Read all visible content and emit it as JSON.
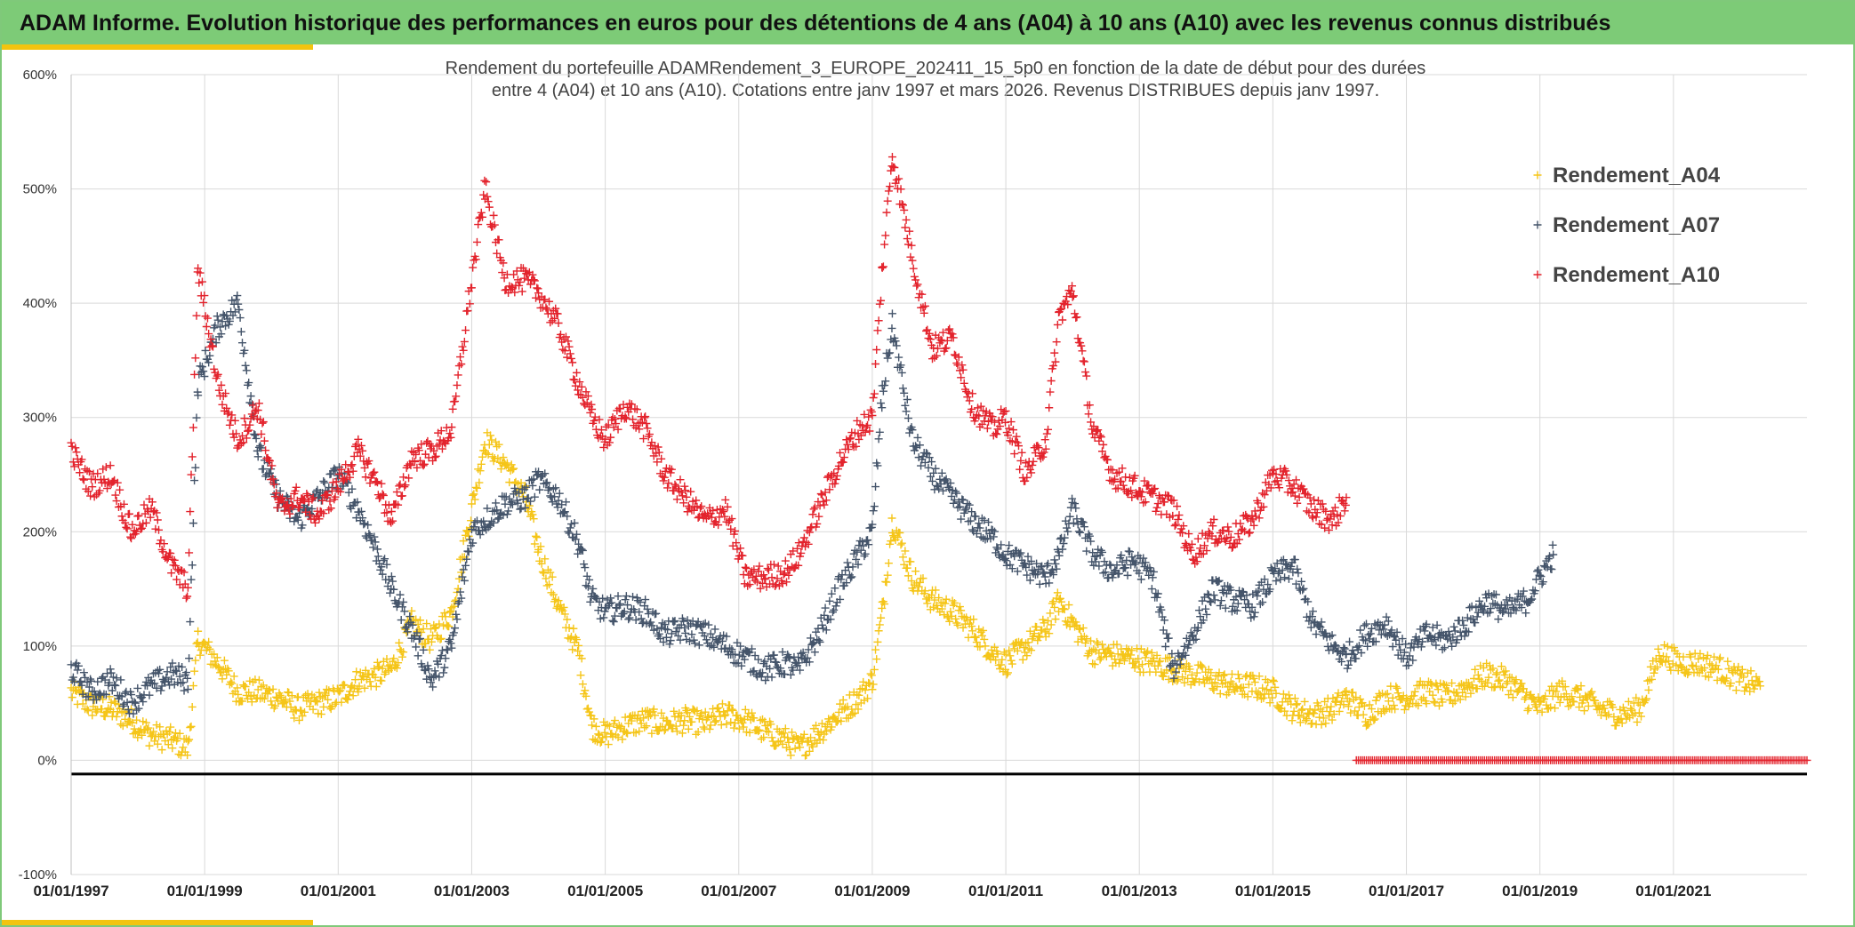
{
  "header": {
    "title": "ADAM Informe. Evolution historique des performances en euros pour des détentions de 4 ans (A04) à 10 ans (A10) avec les revenus connus distribués"
  },
  "colors": {
    "header_bg": "#7dcb77",
    "accent": "#f2c40f",
    "A04": "#f5c518",
    "A07": "#44546a",
    "A10": "#e3232c",
    "baseline": "#000000"
  },
  "chart_data": {
    "type": "scatter",
    "title_line1": "Rendement du portefeuille ADAMRendement_3_EUROPE_202411_15_5p0  en fonction de la date de début pour des durées",
    "title_line2": "entre 4 (A04) et 10 ans (A10). Cotations entre janv 1997 et mars 2026. Revenus DISTRIBUES depuis janv 1997.",
    "xlabel": "",
    "ylabel": "",
    "xlim": [
      1997.0,
      2023.0
    ],
    "ylim": [
      -100,
      600
    ],
    "y_ticks": [
      -100,
      0,
      100,
      200,
      300,
      400,
      500,
      600
    ],
    "y_tick_labels": [
      "-100%",
      "0%",
      "100%",
      "200%",
      "300%",
      "400%",
      "500%",
      "600%"
    ],
    "x_ticks": [
      1997,
      1999,
      2001,
      2003,
      2005,
      2007,
      2009,
      2011,
      2013,
      2015,
      2017,
      2019,
      2021
    ],
    "x_tick_labels": [
      "01/01/1997",
      "01/01/1999",
      "01/01/2001",
      "01/01/2003",
      "01/01/2005",
      "01/01/2007",
      "01/01/2009",
      "01/01/2011",
      "01/01/2013",
      "01/01/2015",
      "01/01/2017",
      "01/01/2019",
      "01/01/2021"
    ],
    "grid": true,
    "legend_position": "top-right",
    "baseline_value": -12,
    "series": [
      {
        "name": "Rendement_A04",
        "color": "#f5c518",
        "x": [
          1997.0,
          1997.3,
          1997.6,
          1997.9,
          1998.2,
          1998.5,
          1998.75,
          1998.9,
          1999.2,
          1999.5,
          1999.8,
          2000.1,
          2000.4,
          2000.7,
          2001.0,
          2001.3,
          2001.6,
          2001.8,
          2002.1,
          2002.4,
          2002.7,
          2003.0,
          2003.2,
          2003.5,
          2003.8,
          2004.0,
          2004.3,
          2004.6,
          2004.8,
          2005.0,
          2005.3,
          2005.6,
          2005.9,
          2006.2,
          2006.5,
          2006.8,
          2007.1,
          2007.4,
          2007.7,
          2007.9,
          2008.2,
          2008.5,
          2008.8,
          2009.0,
          2009.15,
          2009.3,
          2009.6,
          2009.9,
          2010.2,
          2010.5,
          2010.8,
          2011.0,
          2011.3,
          2011.6,
          2011.8,
          2012.0,
          2012.3,
          2012.6,
          2012.9,
          2013.2,
          2013.5,
          2013.8,
          2014.1,
          2014.4,
          2014.7,
          2015.0,
          2015.3,
          2015.6,
          2015.9,
          2016.1,
          2016.4,
          2016.7,
          2017.0,
          2017.3,
          2017.6,
          2017.9,
          2018.2,
          2018.5,
          2018.8,
          2019.0,
          2019.3,
          2019.6,
          2019.9,
          2020.2,
          2020.5,
          2020.8,
          2021.1,
          2021.4,
          2021.7,
          2022.0,
          2022.3
        ],
        "y": [
          60,
          48,
          45,
          35,
          22,
          18,
          10,
          105,
          85,
          60,
          60,
          55,
          45,
          50,
          55,
          70,
          75,
          80,
          120,
          105,
          130,
          220,
          280,
          260,
          230,
          185,
          135,
          95,
          30,
          22,
          30,
          35,
          32,
          35,
          32,
          40,
          35,
          25,
          18,
          10,
          25,
          40,
          55,
          70,
          130,
          210,
          160,
          140,
          130,
          115,
          95,
          85,
          100,
          115,
          140,
          120,
          95,
          92,
          90,
          85,
          80,
          75,
          70,
          65,
          65,
          60,
          45,
          40,
          45,
          55,
          40,
          55,
          55,
          60,
          55,
          65,
          75,
          70,
          55,
          45,
          60,
          55,
          45,
          40,
          45,
          95,
          85,
          85,
          80,
          70,
          65
        ]
      },
      {
        "name": "Rendement_A07",
        "color": "#44546a",
        "x": [
          1997.0,
          1997.3,
          1997.6,
          1997.9,
          1998.2,
          1998.5,
          1998.75,
          1998.9,
          1999.2,
          1999.5,
          1999.8,
          2000.1,
          2000.4,
          2000.7,
          2001.0,
          2001.3,
          2001.6,
          2001.8,
          2002.1,
          2002.4,
          2002.7,
          2003.0,
          2003.2,
          2003.5,
          2003.8,
          2004.0,
          2004.3,
          2004.6,
          2004.8,
          2005.0,
          2005.3,
          2005.6,
          2005.9,
          2006.2,
          2006.5,
          2006.8,
          2007.1,
          2007.4,
          2007.7,
          2007.9,
          2008.2,
          2008.5,
          2008.8,
          2009.0,
          2009.15,
          2009.3,
          2009.6,
          2009.9,
          2010.2,
          2010.5,
          2010.8,
          2011.0,
          2011.3,
          2011.6,
          2011.8,
          2012.0,
          2012.3,
          2012.6,
          2012.9,
          2013.2,
          2013.5,
          2013.8,
          2014.1,
          2014.4,
          2014.7,
          2015.0,
          2015.3,
          2015.6,
          2015.9,
          2016.1,
          2016.4,
          2016.7,
          2017.0,
          2017.3,
          2017.6,
          2017.9,
          2018.2,
          2018.5,
          2018.8,
          2019.0,
          2019.2
        ],
        "y": [
          80,
          60,
          70,
          50,
          65,
          75,
          70,
          330,
          380,
          400,
          270,
          230,
          210,
          230,
          250,
          220,
          180,
          150,
          115,
          70,
          100,
          200,
          210,
          225,
          230,
          245,
          230,
          190,
          140,
          130,
          135,
          130,
          110,
          115,
          110,
          100,
          90,
          80,
          85,
          80,
          110,
          150,
          180,
          200,
          320,
          380,
          280,
          250,
          230,
          210,
          195,
          180,
          170,
          160,
          180,
          220,
          180,
          165,
          175,
          160,
          80,
          110,
          150,
          140,
          135,
          160,
          170,
          120,
          100,
          90,
          110,
          120,
          90,
          110,
          105,
          120,
          140,
          130,
          140,
          160,
          180
        ]
      },
      {
        "name": "Rendement_A10",
        "color": "#e3232c",
        "x": [
          1997.0,
          1997.3,
          1997.6,
          1997.9,
          1998.2,
          1998.5,
          1998.75,
          1998.9,
          1999.2,
          1999.5,
          1999.8,
          2000.1,
          2000.4,
          2000.7,
          2001.0,
          2001.3,
          2001.6,
          2001.8,
          2002.1,
          2002.4,
          2002.7,
          2003.0,
          2003.2,
          2003.5,
          2003.8,
          2004.0,
          2004.3,
          2004.6,
          2004.8,
          2005.0,
          2005.3,
          2005.6,
          2005.9,
          2006.2,
          2006.5,
          2006.8,
          2007.1,
          2007.4,
          2007.7,
          2007.9,
          2008.2,
          2008.5,
          2008.8,
          2009.0,
          2009.15,
          2009.3,
          2009.6,
          2009.9,
          2010.2,
          2010.5,
          2010.8,
          2011.0,
          2011.3,
          2011.6,
          2011.8,
          2012.0,
          2012.3,
          2012.6,
          2012.9,
          2013.2,
          2013.5,
          2013.8,
          2014.1,
          2014.4,
          2014.7,
          2015.0,
          2015.3,
          2015.6,
          2015.9,
          2016.1
        ],
        "y": [
          270,
          240,
          250,
          200,
          220,
          170,
          150,
          430,
          330,
          280,
          310,
          220,
          230,
          215,
          240,
          270,
          240,
          210,
          265,
          270,
          290,
          420,
          500,
          420,
          420,
          410,
          380,
          330,
          300,
          280,
          310,
          290,
          250,
          230,
          210,
          220,
          160,
          160,
          165,
          180,
          220,
          260,
          290,
          300,
          430,
          530,
          440,
          360,
          370,
          310,
          290,
          300,
          250,
          280,
          390,
          410,
          290,
          250,
          240,
          230,
          220,
          180,
          200,
          195,
          210,
          250,
          240,
          220,
          210,
          230
        ]
      }
    ],
    "zero_run": {
      "x_start": 2016.25,
      "x_end": 2023.0,
      "value": 0,
      "color": "#e3232c"
    }
  }
}
